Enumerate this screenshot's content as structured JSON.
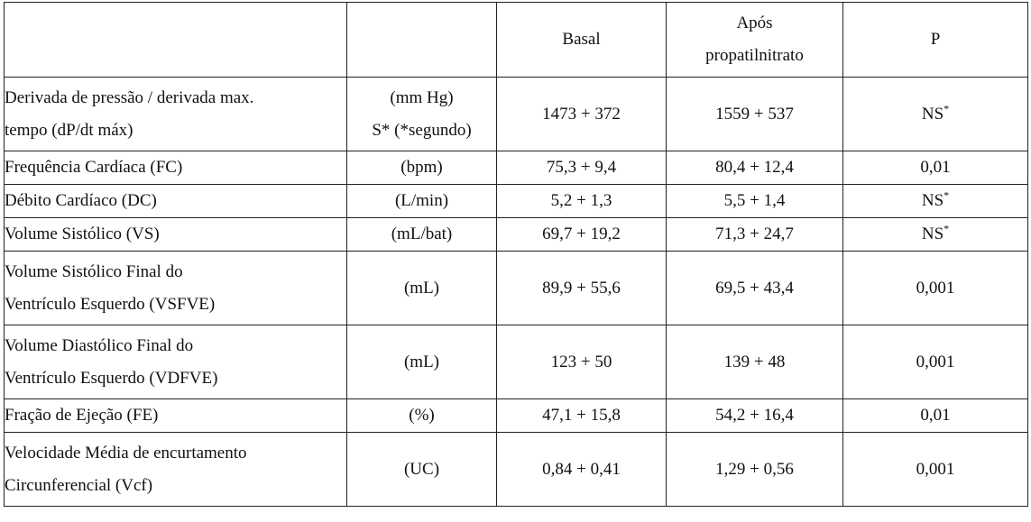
{
  "table": {
    "headers": {
      "parameter": "",
      "unit": "",
      "basal": "Basal",
      "apos_line1": "Após",
      "apos_line2": "propatilnitrato",
      "p": "P"
    },
    "rows": [
      {
        "param_line1": "Derivada de pressão / derivada max.",
        "param_line2": "tempo (dP/dt máx)",
        "unit_line1": "(mm Hg)",
        "unit_line2": "S* (*segundo)",
        "basal": "1473 + 372",
        "apos": "1559 + 537",
        "p": "NS",
        "p_sup": "*"
      },
      {
        "param_line1": "Frequência Cardíaca (FC)",
        "unit_line1": "(bpm)",
        "basal": "75,3 + 9,4",
        "apos": "80,4 + 12,4",
        "p": "0,01"
      },
      {
        "param_line1": "Débito Cardíaco (DC)",
        "unit_line1": "(L/min)",
        "basal": "5,2 + 1,3",
        "apos": "5,5 + 1,4",
        "p": "NS",
        "p_sup": "*"
      },
      {
        "param_line1": "Volume Sistólico (VS)",
        "unit_line1": "(mL/bat)",
        "basal": "69,7 + 19,2",
        "apos": "71,3 + 24,7",
        "p": "NS",
        "p_sup": "*"
      },
      {
        "param_line1": "Volume Sistólico Final do",
        "param_line2": "Ventrículo Esquerdo (VSFVE)",
        "unit_line1": "(mL)",
        "basal": "89,9 + 55,6",
        "apos": "69,5 + 43,4",
        "p": "0,001"
      },
      {
        "param_line1": "Volume Diastólico Final do",
        "param_line2": "Ventrículo Esquerdo (VDFVE)",
        "unit_line1": "(mL)",
        "basal": "123 + 50",
        "apos": "139 + 48",
        "p": "0,001"
      },
      {
        "param_line1": "Fração de Ejeção (FE)",
        "unit_line1": "(%)",
        "basal": "47,1 + 15,8",
        "apos": "54,2 + 16,4",
        "p": "0,01"
      },
      {
        "param_line1": "Velocidade Média de encurtamento",
        "param_line2": "Circunferencial (Vcf)",
        "unit_line1": "(UC)",
        "basal": "0,84 + 0,41",
        "apos": "1,29 + 0,56",
        "p": "0,001"
      }
    ]
  }
}
